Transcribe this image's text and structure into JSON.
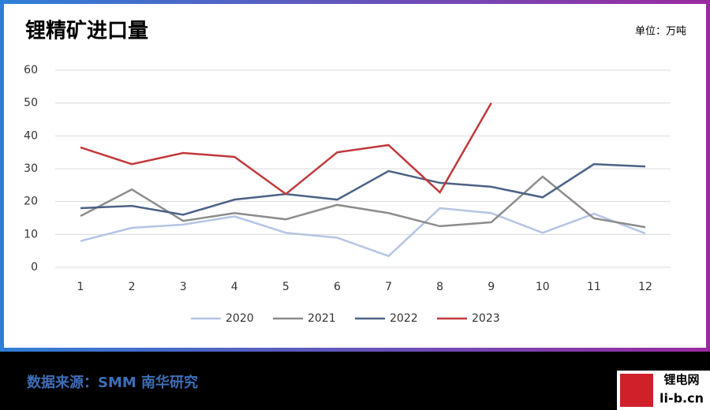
{
  "chart_data": {
    "type": "line",
    "title": "锂精矿进口量",
    "unit": "单位：万吨",
    "categories": [
      "1",
      "2",
      "3",
      "4",
      "5",
      "6",
      "7",
      "8",
      "9",
      "10",
      "11",
      "12"
    ],
    "series": [
      {
        "name": "2020",
        "color": "#b4c4e4",
        "values": [
          8,
          12,
          13,
          15.5,
          10.5,
          9,
          3.4,
          18,
          16.5,
          10.5,
          16.3,
          10.3
        ]
      },
      {
        "name": "2021",
        "color": "#8c8c8c",
        "values": [
          15.6,
          23.7,
          14.1,
          16.5,
          14.6,
          19,
          16.5,
          12.5,
          13.7,
          27.6,
          14.9,
          12.2
        ]
      },
      {
        "name": "2022",
        "color": "#4a6286",
        "values": [
          18,
          18.7,
          16,
          20.6,
          22.3,
          20.6,
          29.3,
          25.7,
          24.5,
          21.3,
          31.4,
          30.7
        ]
      },
      {
        "name": "2023",
        "color": "#c0393b",
        "values": [
          36.5,
          31.4,
          34.8,
          33.6,
          22.3,
          35,
          37.2,
          22.8,
          50,
          null,
          null,
          null
        ]
      }
    ],
    "ylim": [
      0,
      60
    ],
    "yticks": [
      0,
      10,
      20,
      30,
      40,
      50,
      60
    ],
    "grid": true,
    "legend": "bottom",
    "source": "数据来源：SMM 南华研究",
    "watermark": [
      "锂电网",
      "li-b.cn"
    ]
  }
}
